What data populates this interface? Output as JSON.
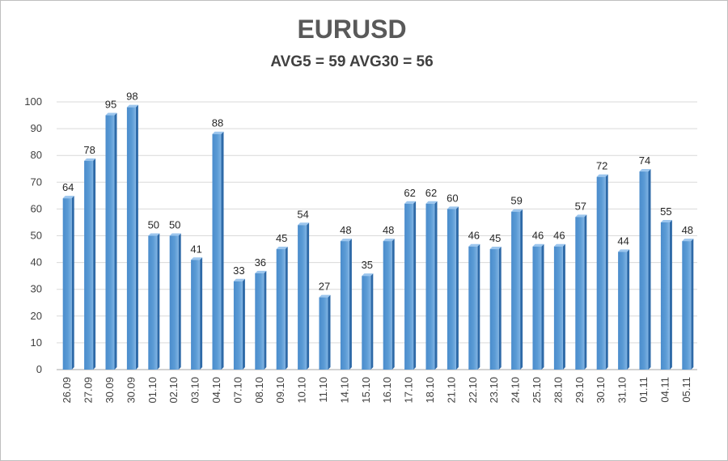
{
  "chart_data": {
    "type": "bar",
    "title": "EURUSD",
    "subtitle": "AVG5 = 59 AVG30 = 56",
    "ylim": [
      0,
      100
    ],
    "yticks": [
      0,
      10,
      20,
      30,
      40,
      50,
      60,
      70,
      80,
      90,
      100
    ],
    "grid": true,
    "legend": "none",
    "bar_color": "#5B9BD5",
    "bar_side_color": "#2E6AA8",
    "categories": [
      "26.09",
      "27.09",
      "30.09",
      "30.09",
      "01.10",
      "02.10",
      "03.10",
      "04.10",
      "07.10",
      "08.10",
      "09.10",
      "10.10",
      "11.10",
      "14.10",
      "15.10",
      "16.10",
      "17.10",
      "18.10",
      "21.10",
      "22.10",
      "23.10",
      "24.10",
      "25.10",
      "28.10",
      "29.10",
      "30.10",
      "31.10",
      "01.11",
      "04.11",
      "05.11"
    ],
    "values": [
      64,
      78,
      95,
      98,
      50,
      50,
      41,
      88,
      33,
      36,
      45,
      54,
      27,
      48,
      35,
      48,
      62,
      62,
      60,
      46,
      45,
      59,
      46,
      46,
      57,
      72,
      44,
      74,
      55,
      48
    ]
  }
}
